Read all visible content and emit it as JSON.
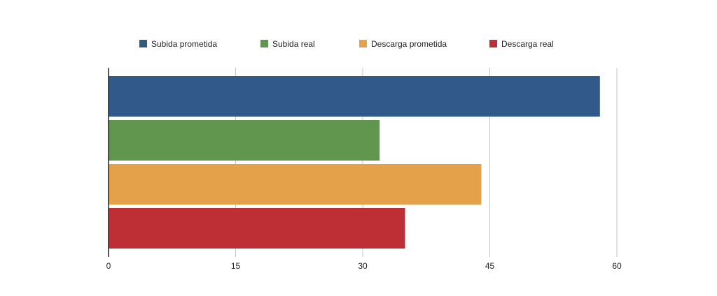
{
  "chart_data": {
    "type": "bar",
    "orientation": "horizontal",
    "title": "",
    "xlabel": "",
    "ylabel": "",
    "xlim": [
      0,
      60
    ],
    "x_ticks": [
      0,
      15,
      30,
      45,
      60
    ],
    "grid": "vertical",
    "legend_position": "top",
    "series": [
      {
        "name": "Subida prometida",
        "value": 58,
        "color": "#31598a"
      },
      {
        "name": "Subida real",
        "value": 32,
        "color": "#61964e"
      },
      {
        "name": "Descarga prometida",
        "value": 44,
        "color": "#e5a04a"
      },
      {
        "name": "Descarga real",
        "value": 35,
        "color": "#bd2f35"
      }
    ]
  }
}
